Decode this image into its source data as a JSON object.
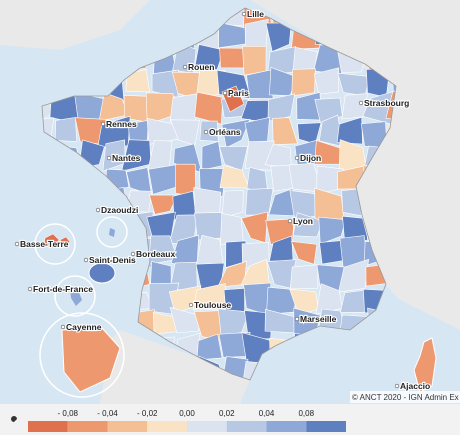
{
  "map": {
    "cities": [
      "Lille",
      "Rouen",
      "Paris",
      "Strasbourg",
      "Rennes",
      "Orléans",
      "Nantes",
      "Dijon",
      "Lyon",
      "Dzaoudzi",
      "Basse-Terre",
      "Saint-Denis",
      "Bordeaux",
      "Fort-de-France",
      "Toulouse",
      "Marseille",
      "Cayenne",
      "Ajaccio"
    ],
    "attribution": "© ANCT 2020 - IGN Admin Ex",
    "legend": {
      "colors": [
        "#e0714f",
        "#ee9870",
        "#f5bf96",
        "#fae2c4",
        "#dbe3f0",
        "#b7c8e5",
        "#8ea9d8",
        "#5f80c0"
      ],
      "labels": [
        "- 0,08",
        "- 0,04",
        "- 0,02",
        "0,00",
        "0,02",
        "0,04",
        "0,08"
      ]
    }
  }
}
